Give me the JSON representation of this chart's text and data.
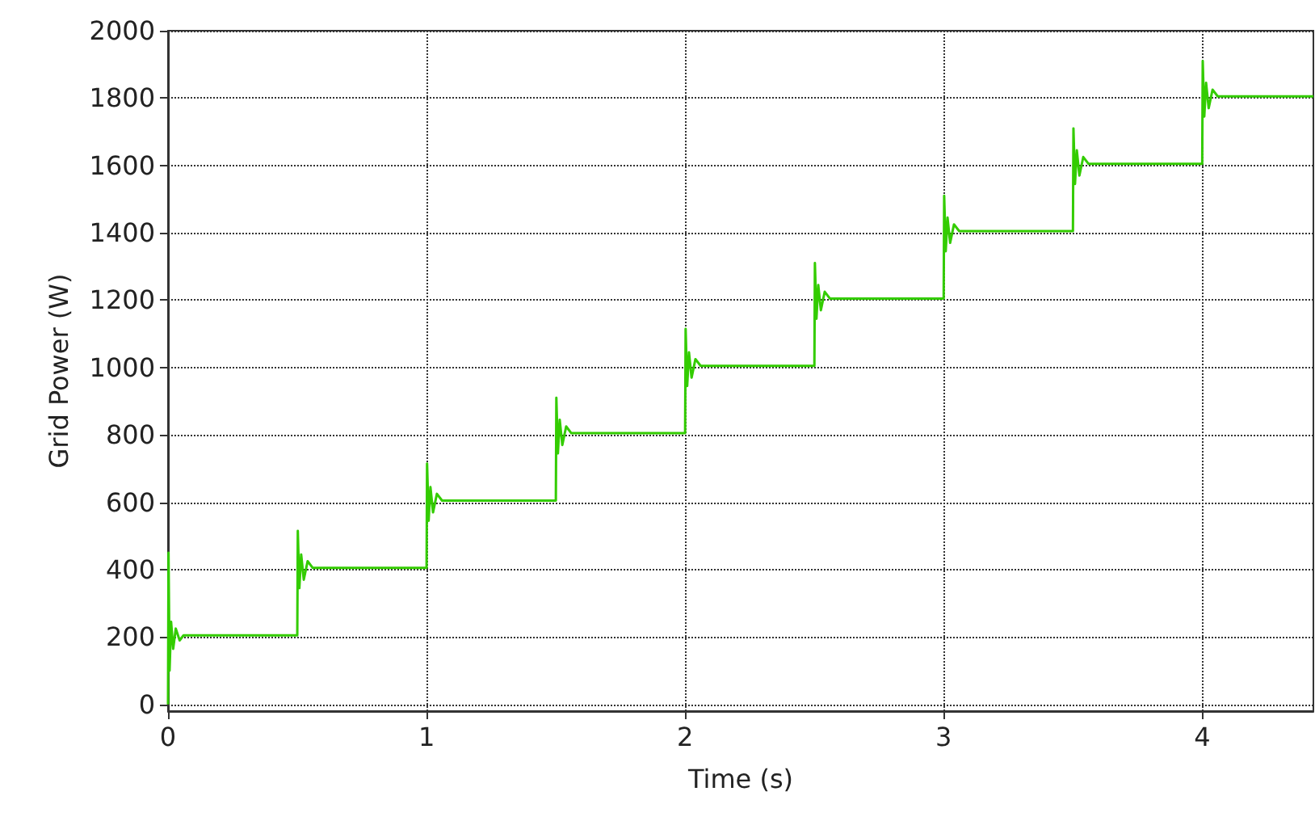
{
  "chart_data": {
    "type": "line",
    "xlabel": "Time (s)",
    "ylabel": "Grid Power (W)",
    "xlim": [
      0,
      4.43
    ],
    "ylim": [
      -20,
      2000
    ],
    "xticks": [
      0,
      1,
      2,
      3,
      4
    ],
    "yticks": [
      0,
      200,
      400,
      600,
      800,
      1000,
      1200,
      1400,
      1600,
      1800,
      2000
    ],
    "grid": true,
    "marker": "none",
    "line_style": "solid",
    "series": [
      {
        "color": "#33cc00",
        "x": [
          0,
          0.002,
          0.006,
          0.012,
          0.02,
          0.03,
          0.045,
          0.06,
          0.5,
          0.502,
          0.508,
          0.515,
          0.525,
          0.54,
          0.56,
          1,
          1.002,
          1.008,
          1.015,
          1.025,
          1.04,
          1.06,
          1.5,
          1.502,
          1.508,
          1.515,
          1.525,
          1.54,
          1.56,
          2,
          2.002,
          2.008,
          2.015,
          2.025,
          2.04,
          2.06,
          2.5,
          2.502,
          2.508,
          2.515,
          2.525,
          2.54,
          2.56,
          3,
          3.002,
          3.008,
          3.015,
          3.025,
          3.04,
          3.06,
          3.5,
          3.502,
          3.508,
          3.515,
          3.525,
          3.54,
          3.56,
          4,
          4.002,
          4.008,
          4.015,
          4.025,
          4.04,
          4.06,
          4.43
        ],
        "values": [
          0,
          450,
          100,
          245,
          165,
          225,
          190,
          205,
          205,
          515,
          345,
          445,
          370,
          425,
          405,
          405,
          715,
          545,
          645,
          570,
          625,
          605,
          605,
          910,
          745,
          845,
          770,
          825,
          805,
          805,
          1115,
          945,
          1045,
          970,
          1025,
          1005,
          1005,
          1310,
          1145,
          1245,
          1170,
          1225,
          1205,
          1205,
          1510,
          1345,
          1445,
          1370,
          1425,
          1405,
          1405,
          1710,
          1545,
          1645,
          1570,
          1625,
          1605,
          1605,
          1910,
          1745,
          1845,
          1770,
          1825,
          1805,
          1805
        ]
      }
    ]
  }
}
